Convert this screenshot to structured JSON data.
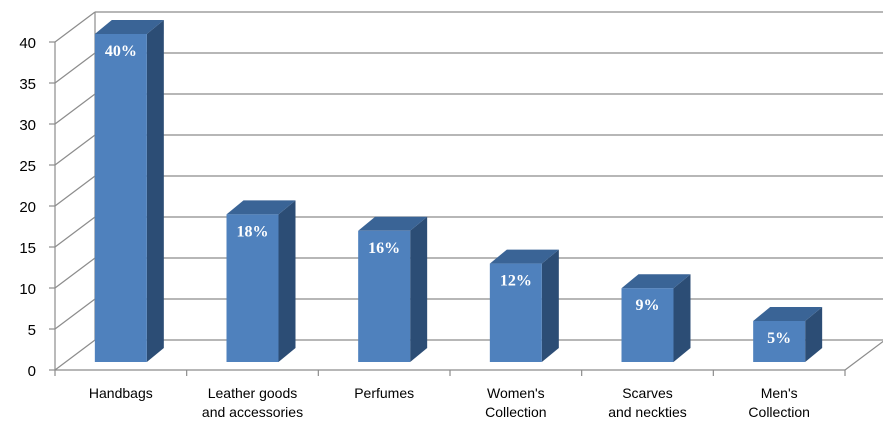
{
  "chart_data": {
    "type": "bar",
    "categories": [
      [
        "Handbags"
      ],
      [
        "Leather goods",
        "and accessories"
      ],
      [
        "Perfumes"
      ],
      [
        "Women's",
        "Collection"
      ],
      [
        "Scarves",
        "and neckties"
      ],
      [
        "Men's",
        "Collection"
      ]
    ],
    "values": [
      40,
      18,
      16,
      12,
      9,
      5
    ],
    "data_labels": [
      "40%",
      "18%",
      "16%",
      "12%",
      "9%",
      "5%"
    ],
    "y_ticks": [
      "0",
      "5",
      "10",
      "15",
      "20",
      "25",
      "30",
      "35",
      "40"
    ],
    "ylim": [
      0,
      40
    ],
    "grid": true,
    "style": "3d-column",
    "colors": {
      "bar_front": "#4f81bd",
      "bar_side": "#2c4d75",
      "bar_top": "#3a6496",
      "grid": "#8c8c8c"
    }
  }
}
